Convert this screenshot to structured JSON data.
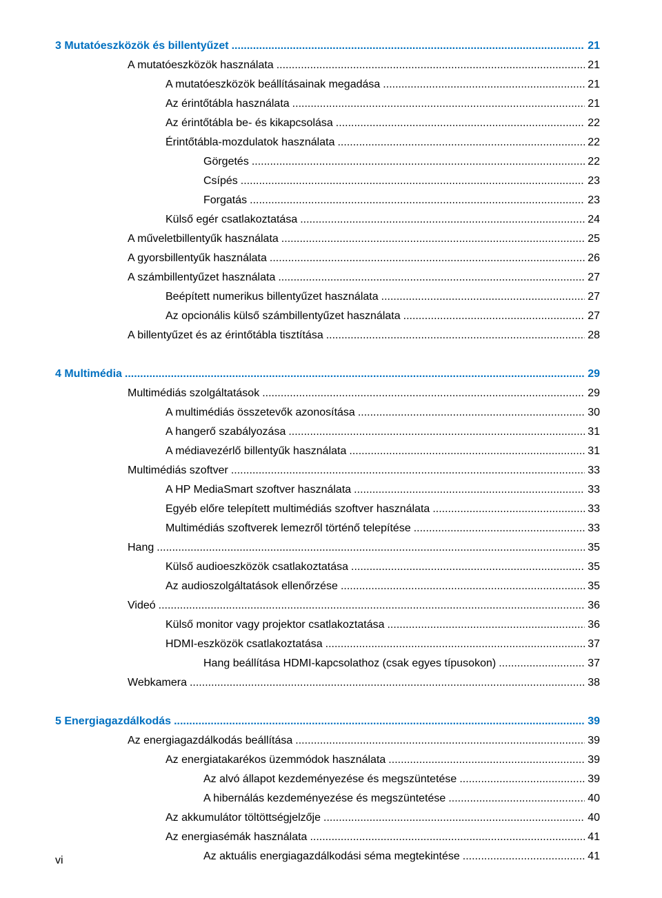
{
  "colors": {
    "heading": "#0070c0",
    "text": "#000000",
    "background": "#ffffff"
  },
  "typography": {
    "font_family": "Arial",
    "body_size_pt": 12,
    "heading_weight": "bold"
  },
  "dot_leader_char": ".",
  "footer": "vi",
  "sections": [
    {
      "number": "3",
      "title": "Mutatóeszközök és billentyűzet",
      "page": "21",
      "entries": [
        {
          "indent": 1,
          "title": "A mutatóeszközök használata",
          "page": "21"
        },
        {
          "indent": 2,
          "title": "A mutatóeszközök beállításainak megadása",
          "page": "21"
        },
        {
          "indent": 2,
          "title": "Az érintőtábla használata",
          "page": "21"
        },
        {
          "indent": 2,
          "title": "Az érintőtábla be- és kikapcsolása",
          "page": "22"
        },
        {
          "indent": 2,
          "title": "Érintőtábla-mozdulatok használata",
          "page": "22"
        },
        {
          "indent": 3,
          "title": "Görgetés",
          "page": "22"
        },
        {
          "indent": 3,
          "title": "Csípés",
          "page": "23"
        },
        {
          "indent": 3,
          "title": "Forgatás",
          "page": "23"
        },
        {
          "indent": 2,
          "title": "Külső egér csatlakoztatása",
          "page": "24"
        },
        {
          "indent": 1,
          "title": "A műveletbillentyűk használata",
          "page": "25"
        },
        {
          "indent": 1,
          "title": "A gyorsbillentyűk használata",
          "page": "26"
        },
        {
          "indent": 1,
          "title": "A számbillentyűzet használata",
          "page": "27"
        },
        {
          "indent": 2,
          "title": "Beépített numerikus billentyűzet használata",
          "page": "27"
        },
        {
          "indent": 2,
          "title": "Az opcionális külső számbillentyűzet használata",
          "page": "27"
        },
        {
          "indent": 1,
          "title": "A billentyűzet és az érintőtábla tisztítása",
          "page": "28"
        }
      ]
    },
    {
      "number": "4",
      "title": "Multimédia",
      "page": "29",
      "entries": [
        {
          "indent": 1,
          "title": "Multimédiás szolgáltatások",
          "page": "29"
        },
        {
          "indent": 2,
          "title": "A multimédiás összetevők azonosítása",
          "page": "30"
        },
        {
          "indent": 2,
          "title": "A hangerő szabályozása",
          "page": "31"
        },
        {
          "indent": 2,
          "title": "A médiavezérlő billentyűk használata",
          "page": "31"
        },
        {
          "indent": 1,
          "title": "Multimédiás szoftver",
          "page": "33"
        },
        {
          "indent": 2,
          "title": "A HP MediaSmart szoftver használata",
          "page": "33"
        },
        {
          "indent": 2,
          "title": "Egyéb előre telepített multimédiás szoftver használata",
          "page": "33"
        },
        {
          "indent": 2,
          "title": "Multimédiás szoftverek lemezről történő telepítése",
          "page": "33"
        },
        {
          "indent": 1,
          "title": "Hang",
          "page": "35"
        },
        {
          "indent": 2,
          "title": "Külső audioeszközök csatlakoztatása",
          "page": "35"
        },
        {
          "indent": 2,
          "title": "Az audioszolgáltatások ellenőrzése",
          "page": "35"
        },
        {
          "indent": 1,
          "title": "Videó",
          "page": "36"
        },
        {
          "indent": 2,
          "title": "Külső monitor vagy projektor csatlakoztatása",
          "page": "36"
        },
        {
          "indent": 2,
          "title": "HDMI-eszközök csatlakoztatása",
          "page": "37"
        },
        {
          "indent": 3,
          "title": "Hang beállítása HDMI-kapcsolathoz (csak egyes típusokon)",
          "page": "37"
        },
        {
          "indent": 1,
          "title": "Webkamera",
          "page": "38"
        }
      ]
    },
    {
      "number": "5",
      "title": "Energiagazdálkodás",
      "page": "39",
      "entries": [
        {
          "indent": 1,
          "title": "Az energiagazdálkodás beállítása",
          "page": "39"
        },
        {
          "indent": 2,
          "title": "Az energiatakarékos üzemmódok használata",
          "page": "39"
        },
        {
          "indent": 3,
          "title": "Az alvó állapot kezdeményezése és megszüntetése",
          "page": "39"
        },
        {
          "indent": 3,
          "title": "A hibernálás kezdeményezése és megszüntetése",
          "page": "40"
        },
        {
          "indent": 2,
          "title": "Az akkumulátor töltöttségjelzője",
          "page": "40"
        },
        {
          "indent": 2,
          "title": "Az energiasémák használata",
          "page": "41"
        },
        {
          "indent": 3,
          "title": "Az aktuális energiagazdálkodási séma megtekintése",
          "page": "41"
        }
      ]
    }
  ]
}
